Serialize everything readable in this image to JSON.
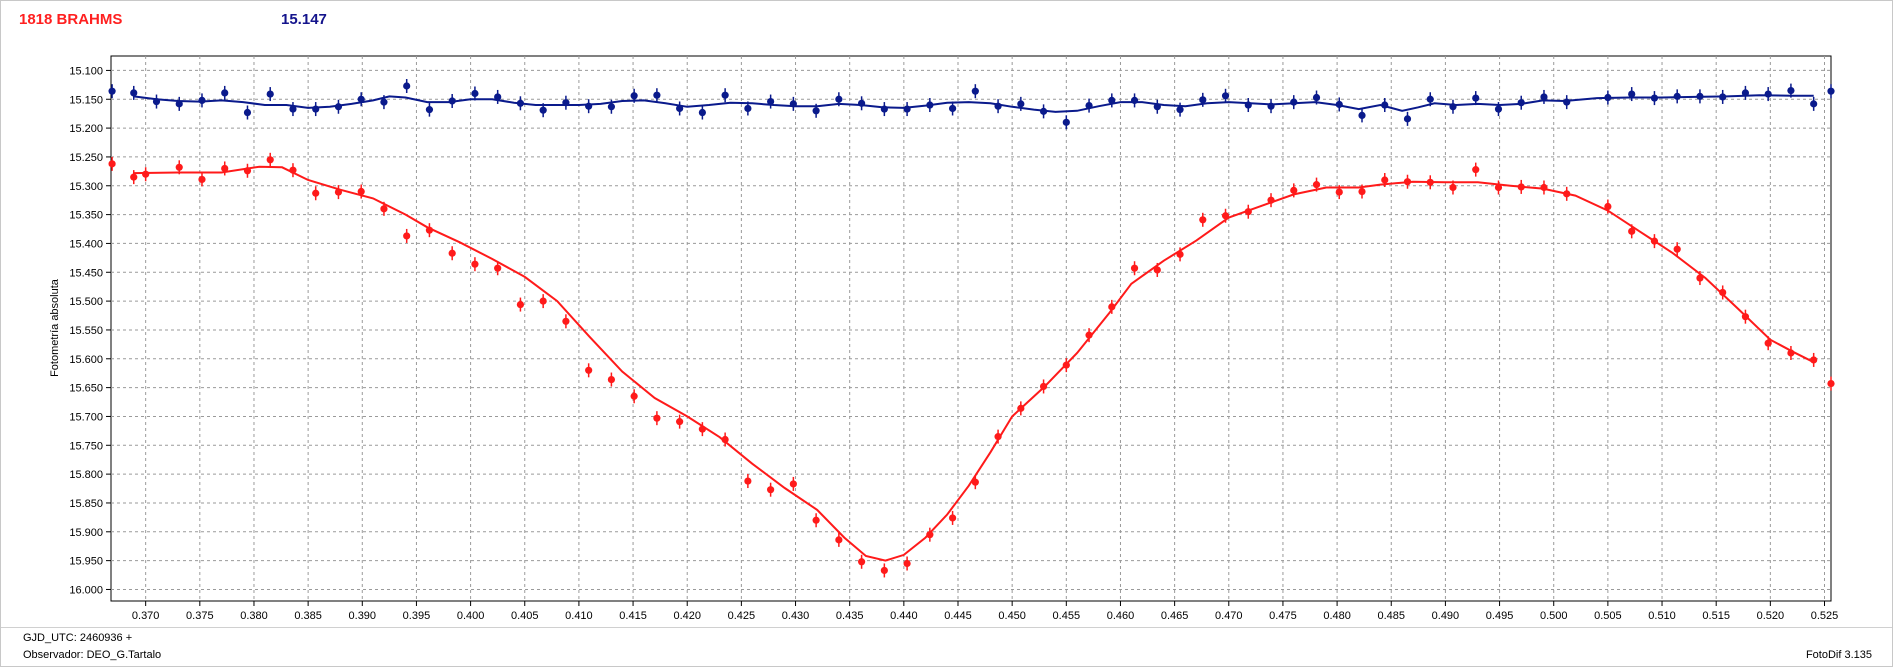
{
  "header": {
    "object_name": "1818 BRAHMS",
    "comparison_mag": "15.147"
  },
  "footer": {
    "gjd_label": "GJD_UTC: 2460936 +",
    "observer_label": "Observador: DEO_G.Tartalo",
    "version_label": "FotoDif 3.135"
  },
  "colors": {
    "target": "#ff1a1a",
    "comparison": "#0a1a8c",
    "grid": "#9a9a9a"
  },
  "chart_data": {
    "type": "scatter",
    "title": "",
    "xlabel": "",
    "ylabel": "Fotometría absoluta",
    "xlim": [
      0.3668,
      0.5256
    ],
    "ylim": [
      15.075,
      16.02
    ],
    "y_inverted": true,
    "grid": true,
    "x_ticks": [
      "0.370",
      "0.375",
      "0.380",
      "0.385",
      "0.390",
      "0.395",
      "0.400",
      "0.405",
      "0.410",
      "0.415",
      "0.420",
      "0.425",
      "0.430",
      "0.435",
      "0.440",
      "0.445",
      "0.450",
      "0.455",
      "0.460",
      "0.465",
      "0.470",
      "0.475",
      "0.480",
      "0.485",
      "0.490",
      "0.495",
      "0.500",
      "0.505",
      "0.510",
      "0.515",
      "0.520",
      "0.525"
    ],
    "y_ticks": [
      "15.100",
      "15.150",
      "15.200",
      "15.250",
      "15.300",
      "15.350",
      "15.400",
      "15.450",
      "15.500",
      "15.550",
      "15.600",
      "15.650",
      "15.700",
      "15.750",
      "15.800",
      "15.850",
      "15.900",
      "15.950",
      "16.000"
    ],
    "series": [
      {
        "role": "target",
        "points": [
          [
            0.3669,
            15.262
          ],
          [
            0.3689,
            15.285
          ],
          [
            0.37,
            15.28
          ],
          [
            0.3731,
            15.268
          ],
          [
            0.3752,
            15.289
          ],
          [
            0.3773,
            15.27
          ],
          [
            0.3794,
            15.274
          ],
          [
            0.3815,
            15.255
          ],
          [
            0.3836,
            15.273
          ],
          [
            0.3857,
            15.313
          ],
          [
            0.3878,
            15.311
          ],
          [
            0.3899,
            15.31
          ],
          [
            0.392,
            15.34
          ],
          [
            0.3941,
            15.387
          ],
          [
            0.3962,
            15.377
          ],
          [
            0.3983,
            15.417
          ],
          [
            0.4004,
            15.436
          ],
          [
            0.4025,
            15.443
          ],
          [
            0.4046,
            15.506
          ],
          [
            0.4067,
            15.5
          ],
          [
            0.4088,
            15.535
          ],
          [
            0.4109,
            15.62
          ],
          [
            0.413,
            15.636
          ],
          [
            0.4151,
            15.665
          ],
          [
            0.4172,
            15.703
          ],
          [
            0.4193,
            15.709
          ],
          [
            0.4214,
            15.722
          ],
          [
            0.4235,
            15.74
          ],
          [
            0.4256,
            15.812
          ],
          [
            0.4277,
            15.827
          ],
          [
            0.4298,
            15.817
          ],
          [
            0.4319,
            15.88
          ],
          [
            0.434,
            15.914
          ],
          [
            0.4361,
            15.952
          ],
          [
            0.4382,
            15.967
          ],
          [
            0.4403,
            15.955
          ],
          [
            0.4424,
            15.905
          ],
          [
            0.4445,
            15.876
          ],
          [
            0.4466,
            15.814
          ],
          [
            0.4487,
            15.735
          ],
          [
            0.4508,
            15.686
          ],
          [
            0.4529,
            15.648
          ],
          [
            0.455,
            15.611
          ],
          [
            0.4571,
            15.559
          ],
          [
            0.4592,
            15.51
          ],
          [
            0.4613,
            15.443
          ],
          [
            0.4634,
            15.446
          ],
          [
            0.4655,
            15.419
          ],
          [
            0.4676,
            15.359
          ],
          [
            0.4697,
            15.352
          ],
          [
            0.4718,
            15.345
          ],
          [
            0.4739,
            15.325
          ],
          [
            0.476,
            15.308
          ],
          [
            0.4781,
            15.298
          ],
          [
            0.4802,
            15.311
          ],
          [
            0.4823,
            15.31
          ],
          [
            0.4844,
            15.29
          ],
          [
            0.4865,
            15.293
          ],
          [
            0.4886,
            15.294
          ],
          [
            0.4907,
            15.303
          ],
          [
            0.4928,
            15.272
          ],
          [
            0.4949,
            15.303
          ],
          [
            0.497,
            15.302
          ],
          [
            0.4991,
            15.303
          ],
          [
            0.5012,
            15.314
          ],
          [
            0.505,
            15.336
          ],
          [
            0.5072,
            15.379
          ],
          [
            0.5093,
            15.396
          ],
          [
            0.5114,
            15.41
          ],
          [
            0.5135,
            15.46
          ],
          [
            0.5156,
            15.485
          ],
          [
            0.5177,
            15.527
          ],
          [
            0.5198,
            15.573
          ],
          [
            0.5219,
            15.59
          ],
          [
            0.524,
            15.602
          ],
          [
            0.5256,
            15.643
          ]
        ],
        "fit": [
          [
            0.3689,
            15.278
          ],
          [
            0.373,
            15.277
          ],
          [
            0.377,
            15.277
          ],
          [
            0.3805,
            15.267
          ],
          [
            0.3826,
            15.268
          ],
          [
            0.385,
            15.29
          ],
          [
            0.388,
            15.307
          ],
          [
            0.391,
            15.322
          ],
          [
            0.394,
            15.35
          ],
          [
            0.396,
            15.372
          ],
          [
            0.399,
            15.398
          ],
          [
            0.402,
            15.427
          ],
          [
            0.405,
            15.458
          ],
          [
            0.408,
            15.5
          ],
          [
            0.411,
            15.562
          ],
          [
            0.414,
            15.622
          ],
          [
            0.417,
            15.668
          ],
          [
            0.42,
            15.7
          ],
          [
            0.423,
            15.736
          ],
          [
            0.426,
            15.782
          ],
          [
            0.429,
            15.824
          ],
          [
            0.432,
            15.862
          ],
          [
            0.4345,
            15.91
          ],
          [
            0.4365,
            15.942
          ],
          [
            0.4383,
            15.95
          ],
          [
            0.44,
            15.94
          ],
          [
            0.442,
            15.91
          ],
          [
            0.444,
            15.87
          ],
          [
            0.446,
            15.82
          ],
          [
            0.448,
            15.762
          ],
          [
            0.45,
            15.7
          ],
          [
            0.453,
            15.648
          ],
          [
            0.456,
            15.59
          ],
          [
            0.459,
            15.52
          ],
          [
            0.461,
            15.47
          ],
          [
            0.464,
            15.43
          ],
          [
            0.467,
            15.395
          ],
          [
            0.47,
            15.355
          ],
          [
            0.473,
            15.335
          ],
          [
            0.476,
            15.315
          ],
          [
            0.479,
            15.303
          ],
          [
            0.482,
            15.303
          ],
          [
            0.484,
            15.298
          ],
          [
            0.487,
            15.293
          ],
          [
            0.49,
            15.294
          ],
          [
            0.493,
            15.294
          ],
          [
            0.496,
            15.3
          ],
          [
            0.499,
            15.305
          ],
          [
            0.502,
            15.317
          ],
          [
            0.505,
            15.343
          ],
          [
            0.508,
            15.38
          ],
          [
            0.511,
            15.417
          ],
          [
            0.514,
            15.46
          ],
          [
            0.517,
            15.513
          ],
          [
            0.52,
            15.567
          ],
          [
            0.522,
            15.587
          ],
          [
            0.524,
            15.606
          ]
        ]
      },
      {
        "role": "comparison",
        "points": [
          [
            0.3669,
            15.136
          ],
          [
            0.3689,
            15.139
          ],
          [
            0.371,
            15.154
          ],
          [
            0.3731,
            15.158
          ],
          [
            0.3752,
            15.152
          ],
          [
            0.3773,
            15.139
          ],
          [
            0.3794,
            15.173
          ],
          [
            0.3815,
            15.141
          ],
          [
            0.3836,
            15.167
          ],
          [
            0.3857,
            15.167
          ],
          [
            0.3878,
            15.163
          ],
          [
            0.3899,
            15.15
          ],
          [
            0.392,
            15.155
          ],
          [
            0.3941,
            15.127
          ],
          [
            0.3962,
            15.168
          ],
          [
            0.3983,
            15.153
          ],
          [
            0.4004,
            15.14
          ],
          [
            0.4025,
            15.146
          ],
          [
            0.4046,
            15.157
          ],
          [
            0.4067,
            15.169
          ],
          [
            0.4088,
            15.156
          ],
          [
            0.4109,
            15.162
          ],
          [
            0.413,
            15.163
          ],
          [
            0.4151,
            15.144
          ],
          [
            0.4172,
            15.143
          ],
          [
            0.4193,
            15.166
          ],
          [
            0.4214,
            15.173
          ],
          [
            0.4235,
            15.143
          ],
          [
            0.4256,
            15.166
          ],
          [
            0.4277,
            15.154
          ],
          [
            0.4298,
            15.158
          ],
          [
            0.4319,
            15.17
          ],
          [
            0.434,
            15.15
          ],
          [
            0.4361,
            15.157
          ],
          [
            0.4382,
            15.167
          ],
          [
            0.4403,
            15.167
          ],
          [
            0.4424,
            15.16
          ],
          [
            0.4445,
            15.166
          ],
          [
            0.4466,
            15.136
          ],
          [
            0.4487,
            15.162
          ],
          [
            0.4508,
            15.158
          ],
          [
            0.4529,
            15.171
          ],
          [
            0.455,
            15.19
          ],
          [
            0.4571,
            15.161
          ],
          [
            0.4592,
            15.152
          ],
          [
            0.4613,
            15.152
          ],
          [
            0.4634,
            15.163
          ],
          [
            0.4655,
            15.168
          ],
          [
            0.4676,
            15.151
          ],
          [
            0.4697,
            15.144
          ],
          [
            0.4718,
            15.16
          ],
          [
            0.4739,
            15.162
          ],
          [
            0.476,
            15.155
          ],
          [
            0.4781,
            15.147
          ],
          [
            0.4802,
            15.159
          ],
          [
            0.4823,
            15.178
          ],
          [
            0.4844,
            15.16
          ],
          [
            0.4865,
            15.184
          ],
          [
            0.4886,
            15.15
          ],
          [
            0.4907,
            15.163
          ],
          [
            0.4928,
            15.148
          ],
          [
            0.4949,
            15.167
          ],
          [
            0.497,
            15.156
          ],
          [
            0.4991,
            15.146
          ],
          [
            0.5012,
            15.155
          ],
          [
            0.505,
            15.147
          ],
          [
            0.5072,
            15.141
          ],
          [
            0.5093,
            15.148
          ],
          [
            0.5114,
            15.145
          ],
          [
            0.5135,
            15.145
          ],
          [
            0.5156,
            15.146
          ],
          [
            0.5177,
            15.139
          ],
          [
            0.5198,
            15.141
          ],
          [
            0.5219,
            15.135
          ],
          [
            0.524,
            15.158
          ],
          [
            0.5256,
            15.136
          ]
        ],
        "fit": [
          [
            0.3689,
            15.145
          ],
          [
            0.371,
            15.15
          ],
          [
            0.373,
            15.153
          ],
          [
            0.375,
            15.154
          ],
          [
            0.377,
            15.152
          ],
          [
            0.379,
            15.155
          ],
          [
            0.381,
            15.16
          ],
          [
            0.383,
            15.16
          ],
          [
            0.385,
            15.165
          ],
          [
            0.387,
            15.163
          ],
          [
            0.389,
            15.158
          ],
          [
            0.391,
            15.152
          ],
          [
            0.3925,
            15.145
          ],
          [
            0.394,
            15.147
          ],
          [
            0.396,
            15.155
          ],
          [
            0.398,
            15.155
          ],
          [
            0.4,
            15.15
          ],
          [
            0.402,
            15.15
          ],
          [
            0.404,
            15.156
          ],
          [
            0.406,
            15.16
          ],
          [
            0.408,
            15.16
          ],
          [
            0.41,
            15.16
          ],
          [
            0.412,
            15.158
          ],
          [
            0.414,
            15.153
          ],
          [
            0.416,
            15.152
          ],
          [
            0.418,
            15.157
          ],
          [
            0.42,
            15.163
          ],
          [
            0.422,
            15.16
          ],
          [
            0.424,
            15.156
          ],
          [
            0.426,
            15.157
          ],
          [
            0.428,
            15.16
          ],
          [
            0.43,
            15.162
          ],
          [
            0.432,
            15.162
          ],
          [
            0.434,
            15.158
          ],
          [
            0.436,
            15.16
          ],
          [
            0.438,
            15.164
          ],
          [
            0.44,
            15.165
          ],
          [
            0.442,
            15.161
          ],
          [
            0.444,
            15.156
          ],
          [
            0.446,
            15.155
          ],
          [
            0.448,
            15.157
          ],
          [
            0.45,
            15.163
          ],
          [
            0.452,
            15.168
          ],
          [
            0.454,
            15.172
          ],
          [
            0.456,
            15.17
          ],
          [
            0.458,
            15.162
          ],
          [
            0.46,
            15.155
          ],
          [
            0.462,
            15.155
          ],
          [
            0.464,
            15.16
          ],
          [
            0.466,
            15.162
          ],
          [
            0.468,
            15.157
          ],
          [
            0.47,
            15.155
          ],
          [
            0.472,
            15.157
          ],
          [
            0.474,
            15.159
          ],
          [
            0.476,
            15.157
          ],
          [
            0.478,
            15.155
          ],
          [
            0.48,
            15.16
          ],
          [
            0.482,
            15.167
          ],
          [
            0.484,
            15.16
          ],
          [
            0.486,
            15.17
          ],
          [
            0.4875,
            15.164
          ],
          [
            0.489,
            15.157
          ],
          [
            0.491,
            15.16
          ],
          [
            0.493,
            15.158
          ],
          [
            0.495,
            15.16
          ],
          [
            0.497,
            15.158
          ],
          [
            0.499,
            15.152
          ],
          [
            0.501,
            15.153
          ],
          [
            0.504,
            15.148
          ],
          [
            0.507,
            15.147
          ],
          [
            0.51,
            15.147
          ],
          [
            0.513,
            15.146
          ],
          [
            0.516,
            15.145
          ],
          [
            0.519,
            15.143
          ],
          [
            0.522,
            15.144
          ],
          [
            0.524,
            15.144
          ]
        ]
      }
    ]
  }
}
